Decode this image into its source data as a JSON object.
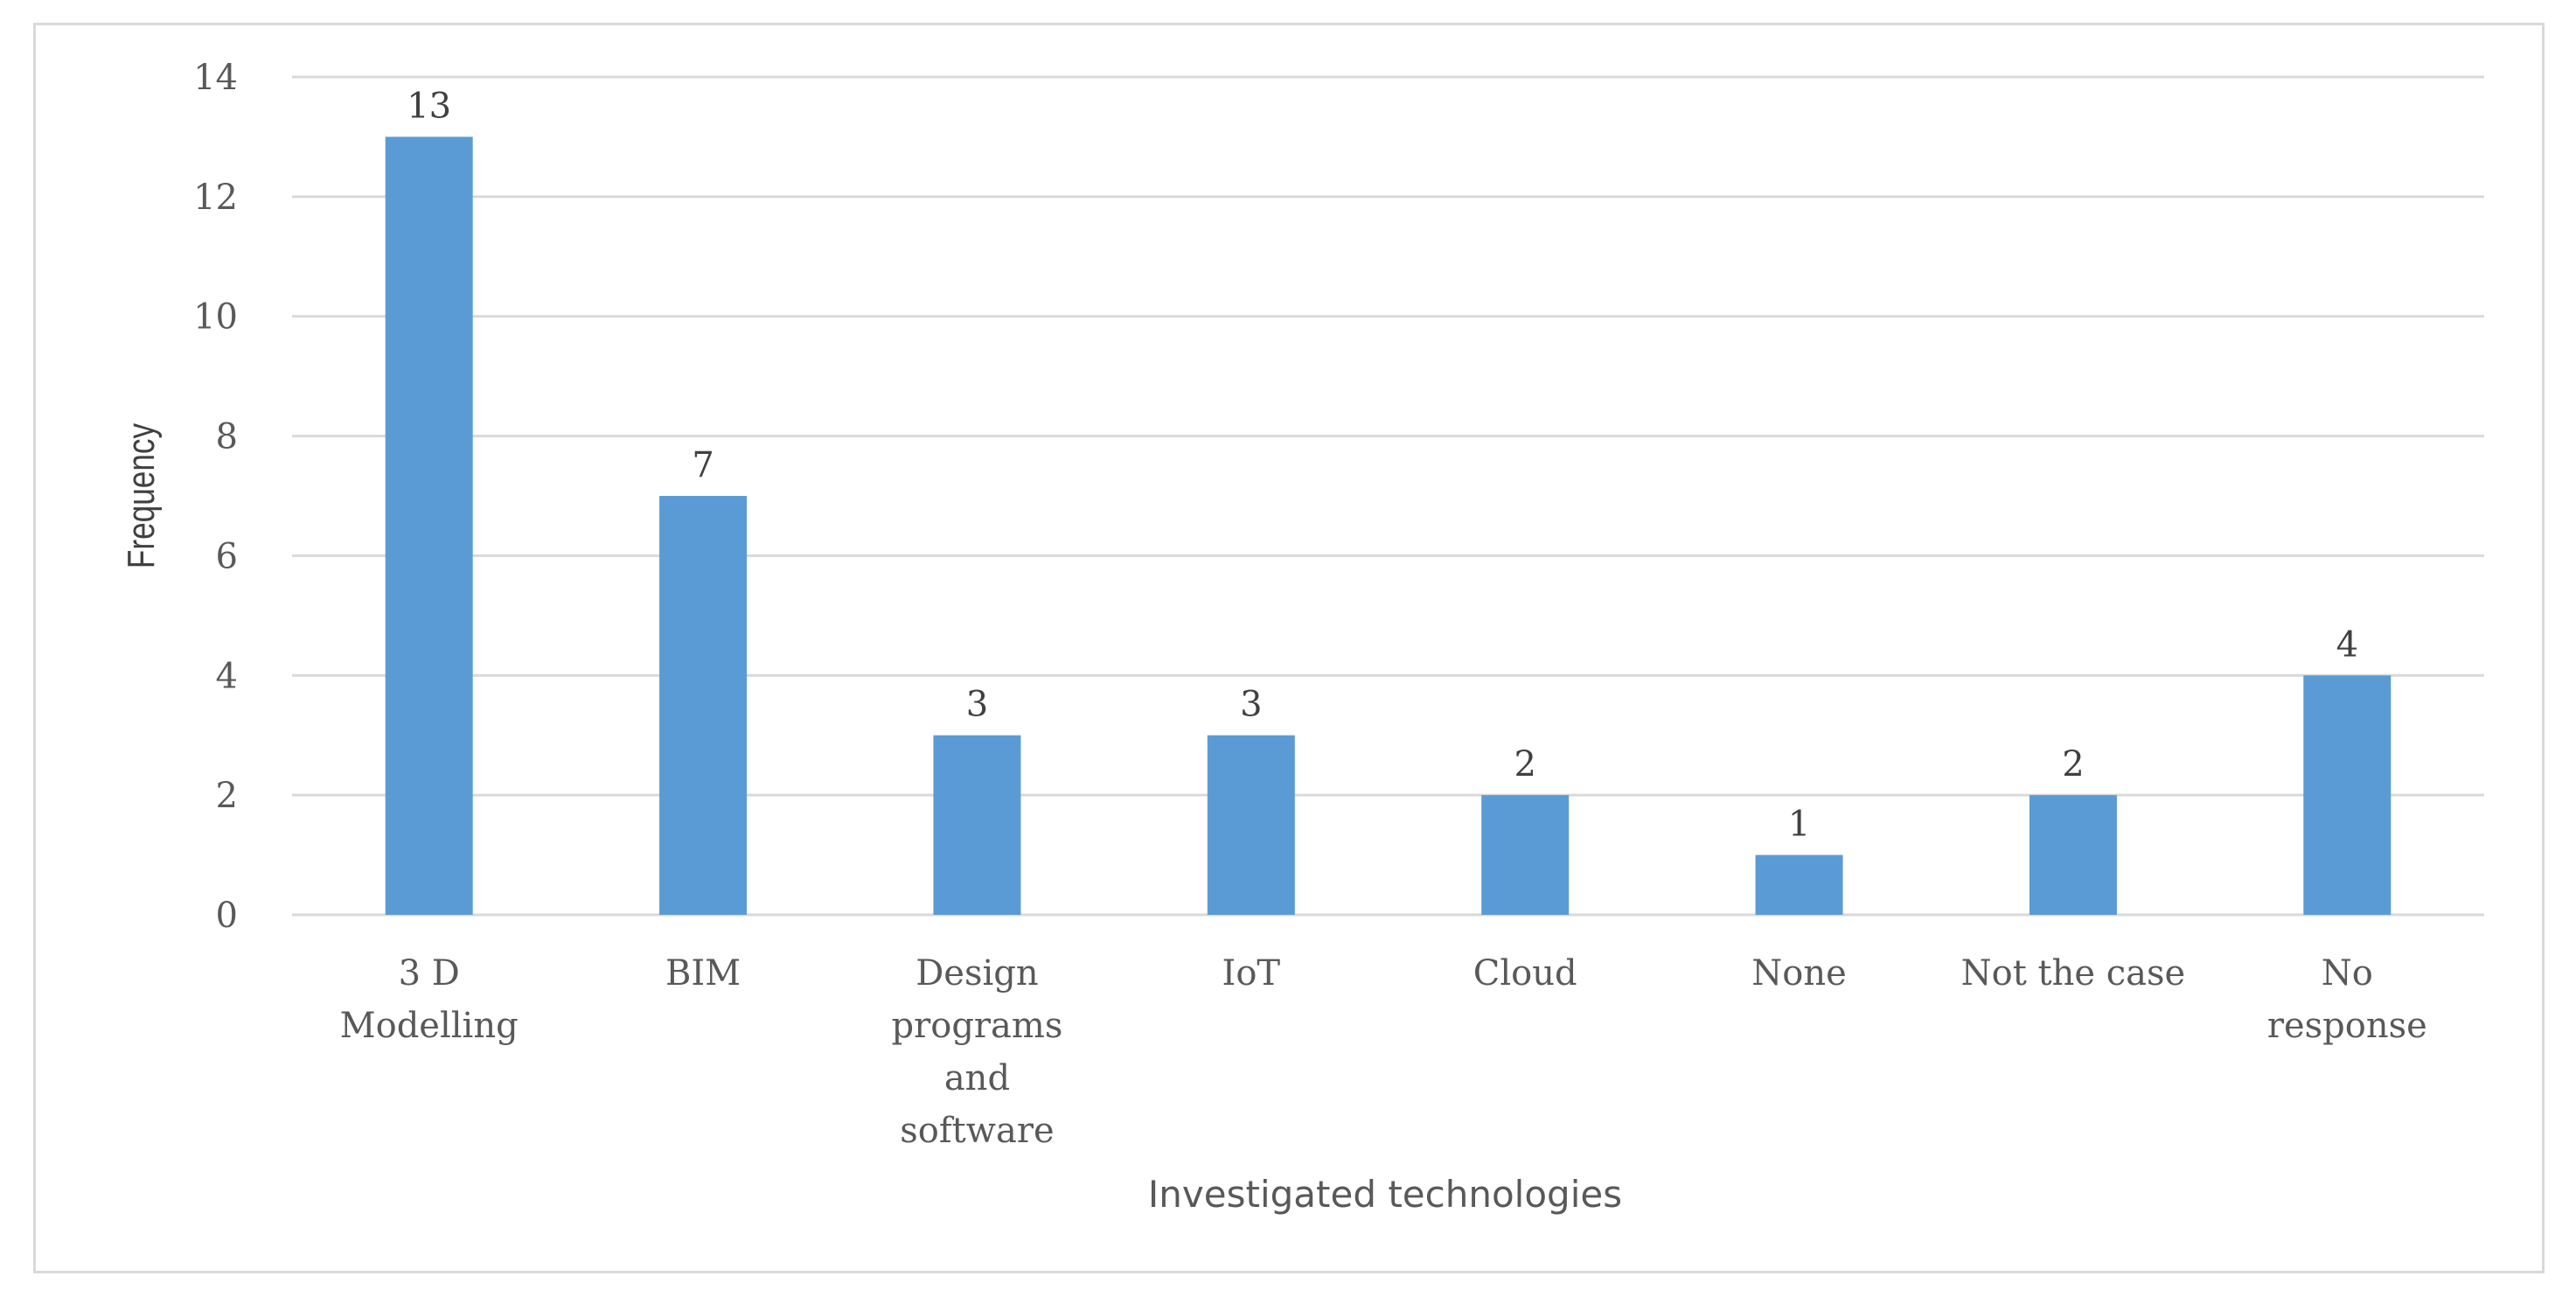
{
  "chart_data": {
    "type": "bar",
    "title": "",
    "xlabel": "Investigated technologies",
    "ylabel": "Frequency",
    "ylim": [
      0,
      14
    ],
    "yticks": [
      0,
      2,
      4,
      6,
      8,
      10,
      12,
      14
    ],
    "grid": true,
    "legend": "none",
    "bar_color": "#5b9bd5",
    "categories": [
      [
        "3 D",
        "Modelling"
      ],
      [
        "BIM"
      ],
      [
        "Design",
        "programs",
        "and",
        "software"
      ],
      [
        "IoT"
      ],
      [
        "Cloud"
      ],
      [
        "None"
      ],
      [
        "Not the case"
      ],
      [
        "No",
        "response"
      ]
    ],
    "values": [
      13,
      7,
      3,
      3,
      2,
      1,
      2,
      4
    ],
    "data_labels": true
  }
}
